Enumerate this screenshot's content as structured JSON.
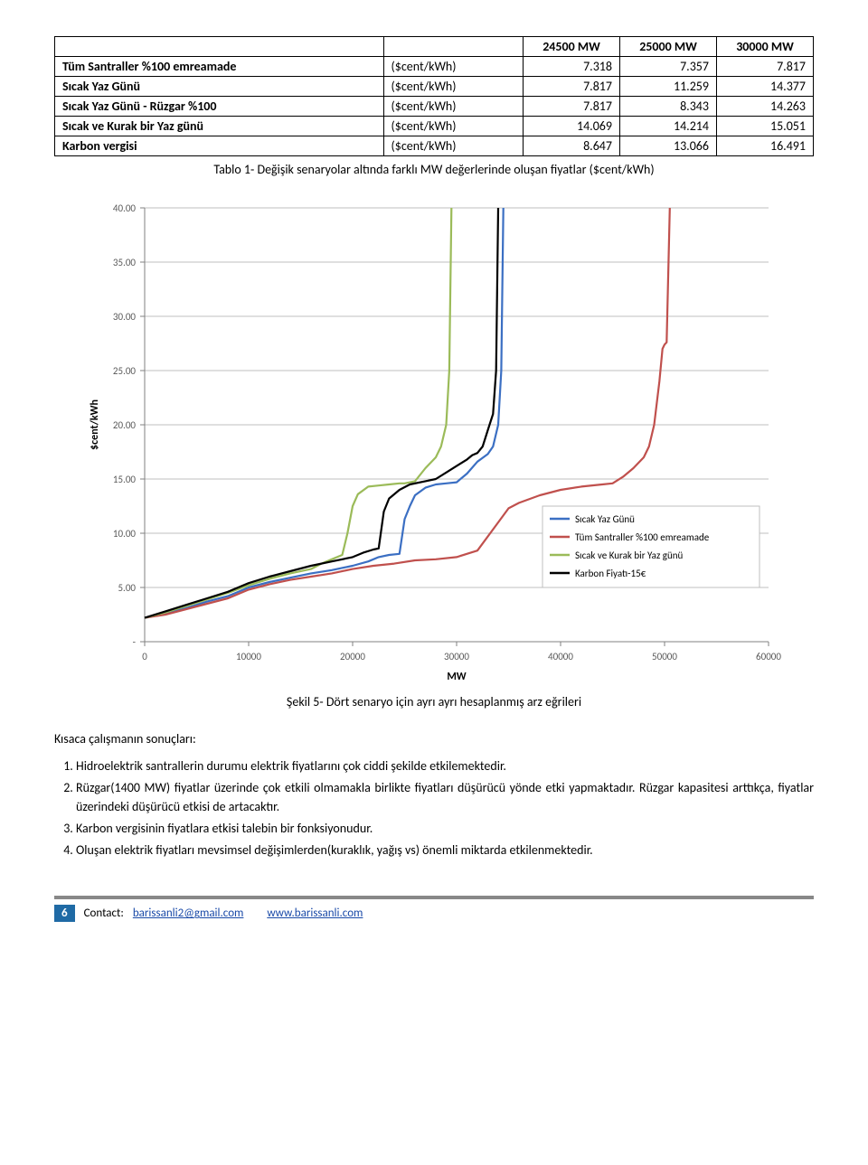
{
  "table": {
    "headers": [
      "",
      "",
      "24500 MW",
      "25000 MW",
      "30000 MW"
    ],
    "rows": [
      {
        "label": "Tüm Santraller %100 emreamade",
        "unit": "($cent/kWh)",
        "values": [
          "7.318",
          "7.357",
          "7.817"
        ]
      },
      {
        "label": "Sıcak Yaz Günü",
        "unit": "($cent/kWh)",
        "values": [
          "7.817",
          "11.259",
          "14.377"
        ]
      },
      {
        "label": "Sıcak Yaz Günü - Rüzgar %100",
        "unit": "($cent/kWh)",
        "values": [
          "7.817",
          "8.343",
          "14.263"
        ]
      },
      {
        "label": "Sıcak ve Kurak bir Yaz günü",
        "unit": "($cent/kWh)",
        "values": [
          "14.069",
          "14.214",
          "15.051"
        ]
      },
      {
        "label": "Karbon vergisi",
        "unit": "($cent/kWh)",
        "values": [
          "8.647",
          "13.066",
          "16.491"
        ]
      }
    ],
    "caption": "Tablo 1- Değişik senaryolar altında farklı MW değerlerinde oluşan fiyatlar ($cent/kWh)"
  },
  "chart": {
    "type": "line",
    "xlabel": "MW",
    "ylabel": "$cent/kWh",
    "label_fontsize": 12,
    "tick_fontsize": 11,
    "xlim": [
      0,
      60000
    ],
    "ylim": [
      0,
      40
    ],
    "xtick_step": 10000,
    "ytick_step": 5,
    "xticks": [
      "0",
      "10000",
      "20000",
      "30000",
      "40000",
      "50000",
      "60000"
    ],
    "yticks": [
      "-",
      "5.00",
      "10.00",
      "15.00",
      "20.00",
      "25.00",
      "30.00",
      "35.00",
      "40.00"
    ],
    "background_color": "#ffffff",
    "grid_color": "#bfbfbf",
    "axis_color": "#808080",
    "grid_line_width": 1,
    "line_width": 2.2,
    "legend": {
      "position": "right-lower",
      "fontsize": 11,
      "border_color": "#bfbfbf",
      "items": [
        {
          "label": "Sıcak Yaz Günü",
          "color": "#3b6fc3"
        },
        {
          "label": "Tüm Santraller %100 emreamade",
          "color": "#c0504d"
        },
        {
          "label": "Sıcak ve Kurak bir Yaz günü",
          "color": "#9bbb59"
        },
        {
          "label": "Karbon Fiyatı-15€",
          "color": "#000000"
        }
      ]
    },
    "series": [
      {
        "name": "Sıcak Yaz Günü",
        "color": "#3b6fc3",
        "points": [
          [
            0,
            2.2
          ],
          [
            2000,
            2.6
          ],
          [
            4000,
            3.1
          ],
          [
            6000,
            3.7
          ],
          [
            8000,
            4.2
          ],
          [
            10000,
            5.0
          ],
          [
            12000,
            5.5
          ],
          [
            14000,
            5.9
          ],
          [
            16000,
            6.3
          ],
          [
            18000,
            6.6
          ],
          [
            20000,
            7.0
          ],
          [
            21500,
            7.4
          ],
          [
            22500,
            7.8
          ],
          [
            23500,
            8.0
          ],
          [
            24500,
            8.1
          ],
          [
            25000,
            11.3
          ],
          [
            25500,
            12.5
          ],
          [
            26000,
            13.5
          ],
          [
            27000,
            14.2
          ],
          [
            28000,
            14.5
          ],
          [
            29000,
            14.6
          ],
          [
            30000,
            14.7
          ],
          [
            31000,
            15.5
          ],
          [
            32000,
            16.6
          ],
          [
            33000,
            17.3
          ],
          [
            33500,
            18.0
          ],
          [
            34000,
            20.0
          ],
          [
            34300,
            25.0
          ],
          [
            34500,
            40.0
          ]
        ]
      },
      {
        "name": "Tüm Santraller %100 emreamade",
        "color": "#c0504d",
        "points": [
          [
            0,
            2.2
          ],
          [
            2000,
            2.5
          ],
          [
            4000,
            3.0
          ],
          [
            6000,
            3.5
          ],
          [
            8000,
            4.0
          ],
          [
            10000,
            4.8
          ],
          [
            12000,
            5.3
          ],
          [
            14000,
            5.7
          ],
          [
            16000,
            6.0
          ],
          [
            18000,
            6.3
          ],
          [
            20000,
            6.7
          ],
          [
            22000,
            7.0
          ],
          [
            24000,
            7.2
          ],
          [
            26000,
            7.5
          ],
          [
            28000,
            7.6
          ],
          [
            30000,
            7.8
          ],
          [
            32000,
            8.4
          ],
          [
            34000,
            11.0
          ],
          [
            35000,
            12.3
          ],
          [
            36000,
            12.8
          ],
          [
            38000,
            13.5
          ],
          [
            40000,
            14.0
          ],
          [
            42000,
            14.3
          ],
          [
            44000,
            14.5
          ],
          [
            45000,
            14.6
          ],
          [
            46000,
            15.2
          ],
          [
            47000,
            16.0
          ],
          [
            48000,
            17.0
          ],
          [
            48500,
            18.0
          ],
          [
            49000,
            20.0
          ],
          [
            49500,
            24.0
          ],
          [
            49800,
            27.0
          ],
          [
            50000,
            27.4
          ],
          [
            50200,
            27.6
          ],
          [
            50500,
            40.0
          ]
        ]
      },
      {
        "name": "Sıcak ve Kurak bir Yaz günü",
        "color": "#9bbb59",
        "points": [
          [
            0,
            2.2
          ],
          [
            2000,
            2.7
          ],
          [
            4000,
            3.3
          ],
          [
            6000,
            3.9
          ],
          [
            8000,
            4.5
          ],
          [
            10000,
            5.2
          ],
          [
            12000,
            5.8
          ],
          [
            14000,
            6.3
          ],
          [
            16000,
            6.7
          ],
          [
            17000,
            7.2
          ],
          [
            18000,
            7.6
          ],
          [
            19000,
            8.0
          ],
          [
            19500,
            10.0
          ],
          [
            20000,
            12.5
          ],
          [
            20500,
            13.6
          ],
          [
            21500,
            14.3
          ],
          [
            22500,
            14.4
          ],
          [
            23500,
            14.5
          ],
          [
            24500,
            14.6
          ],
          [
            25000,
            14.6
          ],
          [
            26000,
            14.8
          ],
          [
            27000,
            16.0
          ],
          [
            28000,
            17.0
          ],
          [
            28500,
            18.0
          ],
          [
            29000,
            20.0
          ],
          [
            29300,
            25.0
          ],
          [
            29500,
            40.0
          ]
        ]
      },
      {
        "name": "Karbon Fiyatı-15€",
        "color": "#000000",
        "points": [
          [
            0,
            2.2
          ],
          [
            2000,
            2.8
          ],
          [
            4000,
            3.4
          ],
          [
            6000,
            4.0
          ],
          [
            8000,
            4.6
          ],
          [
            10000,
            5.4
          ],
          [
            12000,
            6.0
          ],
          [
            14000,
            6.5
          ],
          [
            16000,
            7.0
          ],
          [
            18000,
            7.4
          ],
          [
            20000,
            7.8
          ],
          [
            21000,
            8.2
          ],
          [
            22000,
            8.5
          ],
          [
            22500,
            8.6
          ],
          [
            23000,
            12.0
          ],
          [
            23500,
            13.2
          ],
          [
            24500,
            14.0
          ],
          [
            25500,
            14.5
          ],
          [
            27000,
            14.8
          ],
          [
            28000,
            15.0
          ],
          [
            29000,
            15.6
          ],
          [
            30000,
            16.2
          ],
          [
            31000,
            16.8
          ],
          [
            31500,
            17.2
          ],
          [
            32000,
            17.4
          ],
          [
            32500,
            18.0
          ],
          [
            33000,
            19.5
          ],
          [
            33500,
            21.0
          ],
          [
            33800,
            25.0
          ],
          [
            34000,
            40.0
          ]
        ]
      }
    ],
    "caption": "Şekil 5- Dört senaryo için ayrı ayrı hesaplanmış arz eğrileri"
  },
  "results": {
    "heading": "Kısaca çalışmanın sonuçları:",
    "items": [
      "Hidroelektrik santrallerin durumu elektrik fiyatlarını çok ciddi şekilde etkilemektedir.",
      "Rüzgar(1400 MW)  fiyatlar üzerinde çok etkili olmamakla birlikte fiyatları düşürücü yönde etki yapmaktadır. Rüzgar kapasitesi arttıkça, fiyatlar üzerindeki düşürücü etkisi de artacaktır.",
      "Karbon vergisinin fiyatlara etkisi talebin bir fonksiyonudur.",
      "Oluşan elektrik fiyatları mevsimsel değişimlerden(kuraklık, yağış vs) önemli miktarda etkilenmektedir."
    ]
  },
  "footer": {
    "page": "6",
    "contact_label": "Contact:",
    "email": "barissanli2@gmail.com",
    "site": "www.barissanli.com"
  }
}
